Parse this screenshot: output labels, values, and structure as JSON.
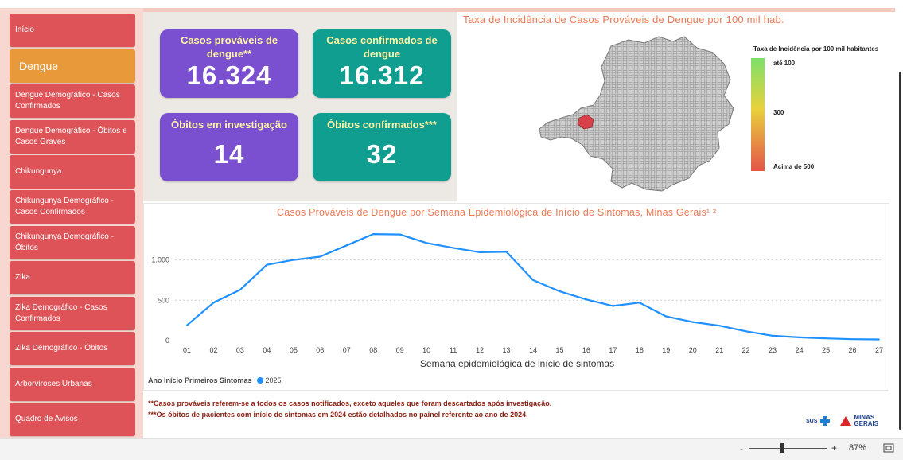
{
  "sidebar": {
    "items": [
      {
        "label": "Início"
      },
      {
        "label": "Dengue"
      },
      {
        "label": "Dengue Demográfico - Casos Confirmados"
      },
      {
        "label": "Dengue Demográfico - Óbitos e Casos Graves"
      },
      {
        "label": "Chikungunya"
      },
      {
        "label": "Chikungunya Demográfico - Casos Confirmados"
      },
      {
        "label": "Chikungunya Demográfico - Óbitos"
      },
      {
        "label": "Zika"
      },
      {
        "label": "Zika Demográfico - Casos Confirmados"
      },
      {
        "label": "Zika Demográfico - Óbitos"
      },
      {
        "label": "Arborviroses Urbanas"
      },
      {
        "label": "Quadro de Avisos"
      }
    ],
    "active_item": "Dengue"
  },
  "kpis": {
    "provaveis": {
      "label": "Casos prováveis de dengue**",
      "value": "16.324"
    },
    "confirmados": {
      "label": "Casos confirmados de dengue",
      "value": "16.312"
    },
    "obitos_investigacao": {
      "label": "Óbitos em investigação",
      "value": "14"
    },
    "obitos_confirmados": {
      "label": "Óbitos confirmados***",
      "value": "32"
    }
  },
  "map": {
    "title": "Taxa de Incidência de Casos Prováveis de Dengue por 100 mil hab.",
    "legend_title": "Taxa de Incidência por 100 mil habitantes",
    "legend_labels": [
      "até 100",
      "300",
      "Acima de 500"
    ],
    "colors": {
      "low": "#7ddf6a",
      "mid": "#e8d23c",
      "high": "#e4544a",
      "municipality": "#cfcfcf"
    }
  },
  "chart_data": {
    "type": "line",
    "title": "Casos Prováveis de Dengue por Semana Epidemiológica de Início de Sintomas, Minas Gerais¹ ²",
    "xlabel": "Semana epidemiológica de início de sintomas",
    "ylabel": "",
    "categories": [
      "01",
      "02",
      "03",
      "04",
      "05",
      "06",
      "07",
      "08",
      "09",
      "10",
      "11",
      "12",
      "13",
      "14",
      "15",
      "16",
      "17",
      "18",
      "19",
      "20",
      "21",
      "22",
      "23",
      "24",
      "25",
      "26",
      "27"
    ],
    "series": [
      {
        "name": "2025",
        "color": "#1e90ff",
        "values": [
          190,
          470,
          630,
          940,
          1000,
          1040,
          1180,
          1320,
          1315,
          1210,
          1150,
          1095,
          1100,
          750,
          610,
          510,
          430,
          470,
          300,
          230,
          185,
          115,
          60,
          40,
          28,
          18,
          15
        ]
      }
    ],
    "ylim": [
      0,
      1400
    ],
    "yticks": [
      {
        "v": 0,
        "label": "0"
      },
      {
        "v": 500,
        "label": "500"
      },
      {
        "v": 1000,
        "label": "1.000"
      }
    ],
    "legend_title": "Ano Início Primeiros Sintomas",
    "grid": true
  },
  "notes": {
    "n1": "**Casos prováveis referem-se a todos os casos notificados, exceto aqueles que foram descartados após investigação.",
    "n2": "***Os óbitos de pacientes com início de sintomas em 2024 estão detalhados no painel referente ao ano de 2024."
  },
  "logo": {
    "sus": "SUS",
    "brand": "MINAS GERAIS"
  },
  "footer": {
    "zoom": "87%",
    "zoom_minus": "-",
    "zoom_plus": "+"
  }
}
